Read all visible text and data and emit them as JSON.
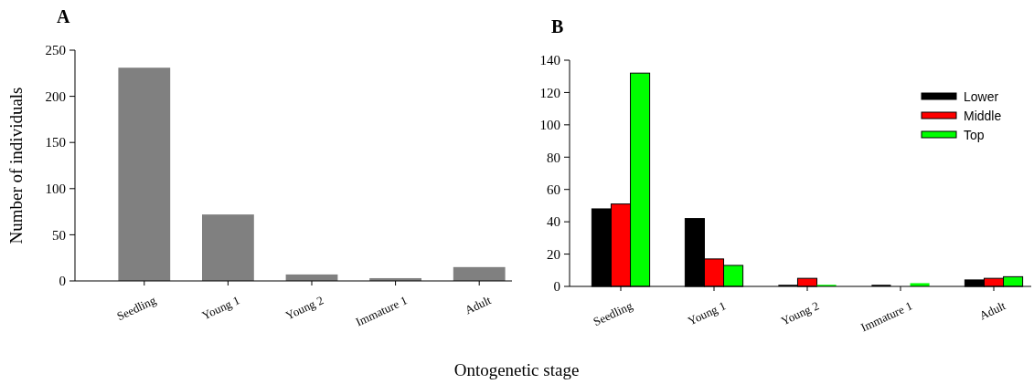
{
  "chart_data": [
    {
      "type": "bar",
      "title": "A",
      "ylabel": "Number of individuals",
      "xlabel": "Ontogenetic stage",
      "categories": [
        "Seedling",
        "Young 1",
        "Young 2",
        "Immature 1",
        "Adult"
      ],
      "values": [
        231,
        72,
        7,
        3,
        15
      ],
      "color": "#808080",
      "ylim": [
        0,
        250
      ],
      "yticks": [
        0,
        50,
        100,
        150,
        200,
        250
      ]
    },
    {
      "type": "bar",
      "title": "B",
      "categories": [
        "Seedling",
        "Young 1",
        "Young 2",
        "Immature 1",
        "Adult"
      ],
      "series": [
        {
          "name": "Lower",
          "color": "#000000",
          "values": [
            48,
            42,
            1,
            1,
            4
          ]
        },
        {
          "name": "Middle",
          "color": "#ff0000",
          "values": [
            51,
            17,
            5,
            0,
            5
          ]
        },
        {
          "name": "Top",
          "color": "#00ff00",
          "values": [
            132,
            13,
            1,
            2,
            6
          ]
        }
      ],
      "ylim": [
        0,
        140
      ],
      "yticks": [
        0,
        20,
        40,
        60,
        80,
        100,
        120,
        140
      ],
      "legend": "top right"
    }
  ]
}
